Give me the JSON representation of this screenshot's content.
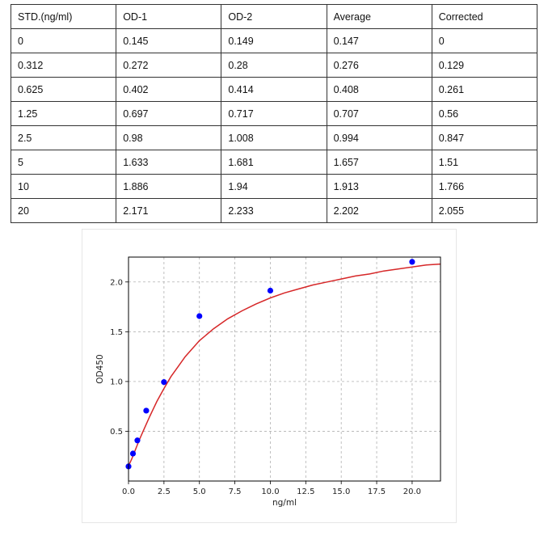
{
  "table": {
    "headers": [
      "STD.(ng/ml)",
      "OD-1",
      "OD-2",
      "Average",
      "Corrected"
    ],
    "rows": [
      [
        "0",
        "0.145",
        "0.149",
        "0.147",
        "0"
      ],
      [
        "0.312",
        "0.272",
        "0.28",
        "0.276",
        "0.129"
      ],
      [
        "0.625",
        "0.402",
        "0.414",
        "0.408",
        "0.261"
      ],
      [
        "1.25",
        "0.697",
        "0.717",
        "0.707",
        "0.56"
      ],
      [
        "2.5",
        "0.98",
        "1.008",
        "0.994",
        "0.847"
      ],
      [
        "5",
        "1.633",
        "1.681",
        "1.657",
        "1.51"
      ],
      [
        "10",
        "1.886",
        "1.94",
        "1.913",
        "1.766"
      ],
      [
        "20",
        "2.171",
        "2.233",
        "2.202",
        "2.055"
      ]
    ]
  },
  "chart_data": {
    "type": "scatter",
    "xlabel": "ng/ml",
    "ylabel": "OD450",
    "xlim": [
      0,
      22
    ],
    "ylim": [
      0.0,
      2.25
    ],
    "x_ticks": [
      "0.0",
      "2.5",
      "5.0",
      "7.5",
      "10.0",
      "12.5",
      "15.0",
      "17.5",
      "20.0"
    ],
    "y_ticks": [
      "0.5",
      "1.0",
      "1.5",
      "2.0"
    ],
    "grid": true,
    "points": {
      "x": [
        0,
        0.312,
        0.625,
        1.25,
        2.5,
        5,
        10,
        20
      ],
      "y": [
        0.147,
        0.276,
        0.408,
        0.707,
        0.994,
        1.657,
        1.913,
        2.202
      ],
      "color": "#0000ff"
    },
    "fit_curve": {
      "x": [
        0,
        0.25,
        0.5,
        0.75,
        1,
        1.5,
        2,
        2.5,
        3,
        3.5,
        4,
        5,
        6,
        7,
        8,
        9,
        10,
        11,
        12,
        13,
        14,
        15,
        16,
        17,
        18,
        19,
        20,
        21,
        22
      ],
      "y": [
        0.15,
        0.23,
        0.32,
        0.41,
        0.49,
        0.65,
        0.8,
        0.93,
        1.05,
        1.15,
        1.25,
        1.41,
        1.53,
        1.63,
        1.71,
        1.78,
        1.84,
        1.89,
        1.93,
        1.97,
        2.0,
        2.03,
        2.06,
        2.08,
        2.11,
        2.13,
        2.15,
        2.17,
        2.18
      ],
      "color": "#d62728"
    }
  }
}
